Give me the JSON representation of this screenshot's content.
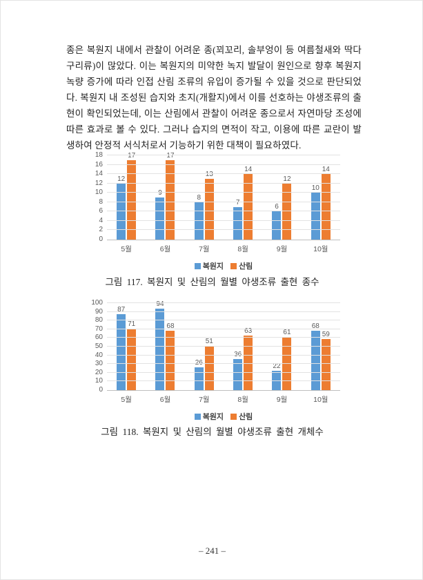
{
  "document": {
    "paragraph": "종은 복원지 내에서 관찰이 어려운 종(꾀꼬리, 솔부엉이 등 여름철새와 딱다구리류)이 많았다. 이는 복원지의 미약한 녹지 발달이 원인으로 향후 복원지 녹량 증가에 따라 인접 산림 조류의 유입이 증가될 수 있을 것으로 판단되었다. 복원지 내 조성된 습지와 초지(개활지)에서 이를 선호하는 야생조류의 출현이 확인되었는데, 이는 산림에서 관찰이 어려운 종으로서 자연마당 조성에 따른 효과로 볼 수 있다. 그러나 습지의 면적이 작고, 이용에 따른 교란이 발생하여 안정적 서식처로서 기능하기 위한 대책이 필요하였다.",
    "page_number": "– 241 –"
  },
  "colors": {
    "series": [
      "#5B9BD5",
      "#ED7D31"
    ],
    "gridline": "#E2E2E2",
    "axis_line": "#BFBFBF",
    "chart_label": "#595959",
    "body_text": "#1F1F1F"
  },
  "chart_data": [
    {
      "type": "bar",
      "title": "",
      "caption": "그림 117. 복원지 및 산림의 월별 야생조류 출현 종수",
      "categories": [
        "5월",
        "6월",
        "7월",
        "8월",
        "9월",
        "10월"
      ],
      "series": [
        {
          "name": "복원지",
          "values": [
            12,
            9,
            8,
            7,
            6,
            10
          ]
        },
        {
          "name": "산림",
          "values": [
            17,
            17,
            13,
            14,
            12,
            14
          ]
        }
      ],
      "xlabel": "",
      "ylabel": "",
      "ylim": [
        0,
        18
      ],
      "ytick_step": 2,
      "grid": true,
      "legend_position": "bottom",
      "data_labels": true
    },
    {
      "type": "bar",
      "title": "",
      "caption": "그림 118. 복원지 및 산림의 월별 야생조류 출현 개체수",
      "categories": [
        "5월",
        "6월",
        "7월",
        "8월",
        "9월",
        "10월"
      ],
      "series": [
        {
          "name": "복원지",
          "values": [
            87,
            94,
            26,
            36,
            22,
            68
          ]
        },
        {
          "name": "산림",
          "values": [
            71,
            68,
            51,
            63,
            61,
            59
          ]
        }
      ],
      "xlabel": "",
      "ylabel": "",
      "ylim": [
        0,
        100
      ],
      "ytick_step": 10,
      "grid": true,
      "legend_position": "bottom",
      "data_labels": true
    }
  ]
}
